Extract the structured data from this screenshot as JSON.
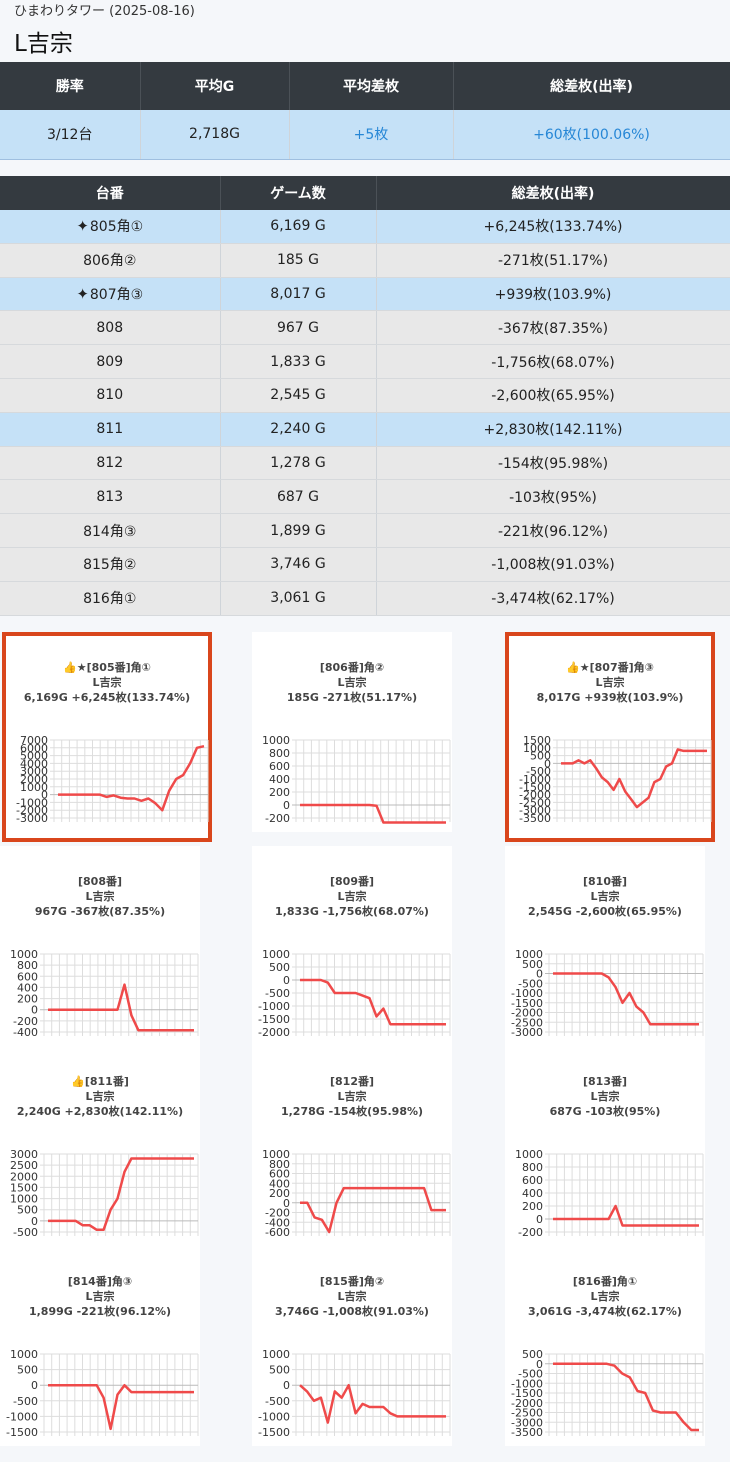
{
  "header": {
    "store": "ひまわりタワー (2025-08-16)",
    "title": "L吉宗"
  },
  "summary": {
    "headers": [
      "勝率",
      "平均G",
      "平均差枚",
      "総差枚(出率)"
    ],
    "values": [
      "3/12台",
      "2,718G",
      "+5枚",
      "+60枚(100.06%)"
    ]
  },
  "machines": {
    "headers": [
      "台番",
      "ゲーム数",
      "総差枚(出率)"
    ],
    "rows": [
      {
        "no": "805角①",
        "games": "6,169 G",
        "diff": "+6,245枚(133.74%)",
        "win": true,
        "star": true
      },
      {
        "no": "806角②",
        "games": "185 G",
        "diff": "-271枚(51.17%)",
        "win": false,
        "star": false
      },
      {
        "no": "807角③",
        "games": "8,017 G",
        "diff": "+939枚(103.9%)",
        "win": true,
        "star": true
      },
      {
        "no": "808",
        "games": "967 G",
        "diff": "-367枚(87.35%)",
        "win": false,
        "star": false
      },
      {
        "no": "809",
        "games": "1,833 G",
        "diff": "-1,756枚(68.07%)",
        "win": false,
        "star": false
      },
      {
        "no": "810",
        "games": "2,545 G",
        "diff": "-2,600枚(65.95%)",
        "win": false,
        "star": false
      },
      {
        "no": "811",
        "games": "2,240 G",
        "diff": "+2,830枚(142.11%)",
        "win": true,
        "star": false
      },
      {
        "no": "812",
        "games": "1,278 G",
        "diff": "-154枚(95.98%)",
        "win": false,
        "star": false
      },
      {
        "no": "813",
        "games": "687 G",
        "diff": "-103枚(95%)",
        "win": false,
        "star": false
      },
      {
        "no": "814角③",
        "games": "1,899 G",
        "diff": "-221枚(96.12%)",
        "win": false,
        "star": false
      },
      {
        "no": "815角②",
        "games": "3,746 G",
        "diff": "-1,008枚(91.03%)",
        "win": false,
        "star": false
      },
      {
        "no": "816角①",
        "games": "3,061 G",
        "diff": "-3,474枚(62.17%)",
        "win": false,
        "star": false
      }
    ]
  },
  "chart_data": [
    {
      "type": "line",
      "title": "👍★[805番]角①",
      "subtitle": "L吉宗",
      "caption": "6,169G +6,245枚(133.74%)",
      "highlight": true,
      "ylim": [
        -3000,
        7000
      ],
      "yticks": [
        7000,
        6000,
        5000,
        4000,
        3000,
        2000,
        1000,
        0,
        -1000,
        -2000,
        -3000
      ],
      "y": [
        0,
        0,
        0,
        0,
        0,
        0,
        0,
        -300,
        -100,
        -400,
        -500,
        -500,
        -800,
        -500,
        -1100,
        -2000,
        500,
        2000,
        2500,
        4000,
        6000,
        6200
      ]
    },
    {
      "type": "line",
      "title": "[806番]角②",
      "subtitle": "L吉宗",
      "caption": "185G -271枚(51.17%)",
      "highlight": false,
      "ylim": [
        -200,
        1000
      ],
      "yticks": [
        1000,
        800,
        600,
        400,
        200,
        0,
        -200
      ],
      "y": [
        0,
        0,
        0,
        0,
        0,
        0,
        0,
        0,
        0,
        0,
        0,
        -10,
        -270,
        -270,
        -270,
        -270,
        -270,
        -270,
        -270,
        -270,
        -270,
        -270
      ]
    },
    {
      "type": "line",
      "title": "👍★[807番]角③",
      "subtitle": "L吉宗",
      "caption": "8,017G +939枚(103.9%)",
      "highlight": true,
      "ylim": [
        -3500,
        1500
      ],
      "yticks": [
        1500,
        1000,
        500,
        0,
        -500,
        -1000,
        -1500,
        -2000,
        -2500,
        -3000,
        -3500
      ],
      "y": [
        0,
        0,
        0,
        200,
        0,
        200,
        -300,
        -900,
        -1200,
        -1700,
        -1000,
        -1800,
        -2300,
        -2800,
        -2500,
        -2200,
        -1200,
        -1000,
        -200,
        0,
        900,
        800,
        800,
        800,
        800,
        800
      ]
    },
    {
      "type": "line",
      "title": "[808番]",
      "subtitle": "L吉宗",
      "caption": "967G -367枚(87.35%)",
      "highlight": false,
      "ylim": [
        -400,
        1000
      ],
      "yticks": [
        1000,
        800,
        600,
        400,
        200,
        0,
        -200,
        -400
      ],
      "y": [
        0,
        0,
        0,
        0,
        0,
        0,
        0,
        0,
        0,
        0,
        0,
        450,
        -100,
        -370,
        -370,
        -370,
        -370,
        -370,
        -370,
        -370,
        -370,
        -370
      ]
    },
    {
      "type": "line",
      "title": "[809番]",
      "subtitle": "L吉宗",
      "caption": "1,833G -1,756枚(68.07%)",
      "highlight": false,
      "ylim": [
        -2000,
        1000
      ],
      "yticks": [
        1000,
        500,
        0,
        -500,
        -1000,
        -1500,
        -2000
      ],
      "y": [
        0,
        0,
        0,
        0,
        -100,
        -500,
        -500,
        -500,
        -500,
        -600,
        -700,
        -1400,
        -1100,
        -1700,
        -1700,
        -1700,
        -1700,
        -1700,
        -1700,
        -1700,
        -1700,
        -1700
      ]
    },
    {
      "type": "line",
      "title": "[810番]",
      "subtitle": "L吉宗",
      "caption": "2,545G -2,600枚(65.95%)",
      "highlight": false,
      "ylim": [
        -3000,
        1000
      ],
      "yticks": [
        1000,
        500,
        0,
        -500,
        -1000,
        -1500,
        -2000,
        -2500,
        -3000
      ],
      "y": [
        0,
        0,
        0,
        0,
        0,
        0,
        0,
        0,
        -200,
        -700,
        -1500,
        -1000,
        -1700,
        -2000,
        -2600,
        -2600,
        -2600,
        -2600,
        -2600,
        -2600,
        -2600,
        -2600
      ]
    },
    {
      "type": "line",
      "title": "👍[811番]",
      "subtitle": "L吉宗",
      "caption": "2,240G +2,830枚(142.11%)",
      "highlight": false,
      "ylim": [
        -500,
        3000
      ],
      "yticks": [
        3000,
        2500,
        2000,
        1500,
        1000,
        500,
        0,
        -500
      ],
      "y": [
        0,
        0,
        0,
        0,
        0,
        -200,
        -200,
        -400,
        -400,
        500,
        1000,
        2200,
        2800,
        2800,
        2800,
        2800,
        2800,
        2800,
        2800,
        2800,
        2800,
        2800
      ]
    },
    {
      "type": "line",
      "title": "[812番]",
      "subtitle": "L吉宗",
      "caption": "1,278G -154枚(95.98%)",
      "highlight": false,
      "ylim": [
        -600,
        1000
      ],
      "yticks": [
        1000,
        800,
        600,
        400,
        200,
        0,
        -200,
        -400,
        -600
      ],
      "y": [
        0,
        0,
        -300,
        -350,
        -600,
        0,
        300,
        300,
        300,
        300,
        300,
        300,
        300,
        300,
        300,
        300,
        300,
        300,
        -150,
        -150,
        -150
      ]
    },
    {
      "type": "line",
      "title": "[813番]",
      "subtitle": "L吉宗",
      "caption": "687G -103枚(95%)",
      "highlight": false,
      "ylim": [
        -200,
        1000
      ],
      "yticks": [
        1000,
        800,
        600,
        400,
        200,
        0,
        -200
      ],
      "y": [
        0,
        0,
        0,
        0,
        0,
        0,
        0,
        0,
        0,
        200,
        -100,
        -100,
        -100,
        -100,
        -100,
        -100,
        -100,
        -100,
        -100,
        -100,
        -100,
        -100
      ]
    },
    {
      "type": "line",
      "title": "[814番]角③",
      "subtitle": "L吉宗",
      "caption": "1,899G -221枚(96.12%)",
      "highlight": false,
      "ylim": [
        -1500,
        1000
      ],
      "yticks": [
        1000,
        500,
        0,
        -500,
        -1000,
        -1500
      ],
      "y": [
        0,
        0,
        0,
        0,
        0,
        0,
        0,
        0,
        -400,
        -1400,
        -300,
        0,
        -220,
        -220,
        -220,
        -220,
        -220,
        -220,
        -220,
        -220,
        -220,
        -220
      ]
    },
    {
      "type": "line",
      "title": "[815番]角②",
      "subtitle": "L吉宗",
      "caption": "3,746G -1,008枚(91.03%)",
      "highlight": false,
      "ylim": [
        -1500,
        1000
      ],
      "yticks": [
        1000,
        500,
        0,
        -500,
        -1000,
        -1500
      ],
      "y": [
        0,
        -200,
        -500,
        -400,
        -1200,
        -200,
        -400,
        0,
        -900,
        -600,
        -700,
        -700,
        -700,
        -900,
        -1000,
        -1000,
        -1000,
        -1000,
        -1000,
        -1000,
        -1000,
        -1000
      ]
    },
    {
      "type": "line",
      "title": "[816番]角①",
      "subtitle": "L吉宗",
      "caption": "3,061G -3,474枚(62.17%)",
      "highlight": false,
      "ylim": [
        -3500,
        500
      ],
      "yticks": [
        500,
        0,
        -500,
        -1000,
        -1500,
        -2000,
        -2500,
        -3000,
        -3500
      ],
      "y": [
        0,
        0,
        0,
        0,
        0,
        0,
        0,
        0,
        -100,
        -500,
        -700,
        -1400,
        -1500,
        -2400,
        -2500,
        -2500,
        -2500,
        -3000,
        -3400,
        -3400
      ]
    }
  ]
}
